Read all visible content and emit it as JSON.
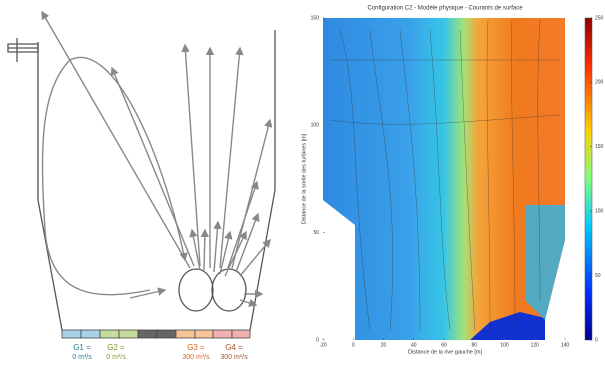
{
  "chart_data": {
    "type": "heatmap",
    "title": "Configuration C2 - Modèle physique - Courants de surface",
    "x_label": "Distance de la rive gauche [m]",
    "y_label": "Distance de la sortie des turbines [m]",
    "xlim": [
      -20,
      140
    ],
    "xticks": [
      -20,
      0,
      20,
      40,
      60,
      80,
      100,
      120,
      140
    ],
    "ylim": [
      0,
      150
    ],
    "yticks": [
      0,
      50,
      100,
      150
    ],
    "clim": [
      0,
      250
    ],
    "cticks": [
      0,
      50,
      100,
      150,
      200,
      250
    ]
  },
  "diagram": {
    "gates": [
      {
        "name": "G1 =",
        "flow": "0 m³/s",
        "color": "#2f7a96"
      },
      {
        "name": "G2 =",
        "flow": "0 m³/s",
        "color": "#7f9a2e"
      },
      {
        "name": "G3 =",
        "flow": "300 m³/s",
        "color": "#d8691f"
      },
      {
        "name": "G4 =",
        "flow": "300 m³/s",
        "color": "#a3502c"
      }
    ]
  }
}
